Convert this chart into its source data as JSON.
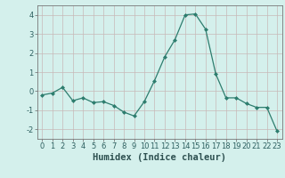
{
  "x": [
    0,
    1,
    2,
    3,
    4,
    5,
    6,
    7,
    8,
    9,
    10,
    11,
    12,
    13,
    14,
    15,
    16,
    17,
    18,
    19,
    20,
    21,
    22,
    23
  ],
  "y": [
    -0.2,
    -0.1,
    0.2,
    -0.5,
    -0.35,
    -0.6,
    -0.55,
    -0.75,
    -1.1,
    -1.3,
    -0.55,
    0.55,
    1.8,
    2.7,
    4.0,
    4.05,
    3.25,
    0.9,
    -0.35,
    -0.35,
    -0.65,
    -0.85,
    -0.85,
    -2.1
  ],
  "line_color": "#2d7d6e",
  "marker": "D",
  "marker_size": 2.0,
  "bg_color": "#d4f0ec",
  "grid_color": "#c8b8b8",
  "xlabel": "Humidex (Indice chaleur)",
  "xlim": [
    -0.5,
    23.5
  ],
  "ylim": [
    -2.5,
    4.5
  ],
  "yticks": [
    -2,
    -1,
    0,
    1,
    2,
    3,
    4
  ],
  "xticks": [
    0,
    1,
    2,
    3,
    4,
    5,
    6,
    7,
    8,
    9,
    10,
    11,
    12,
    13,
    14,
    15,
    16,
    17,
    18,
    19,
    20,
    21,
    22,
    23
  ],
  "tick_label_fontsize": 6.0,
  "xlabel_fontsize": 7.5,
  "xlabel_fontweight": "bold"
}
